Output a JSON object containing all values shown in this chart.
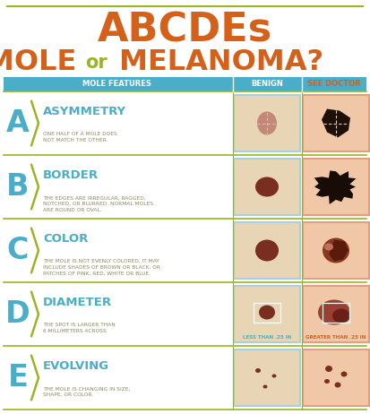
{
  "bg_color": "#ffffff",
  "title_abcdes": "ABCDEs",
  "title_mole": "MOLE ",
  "title_or": "or",
  "title_melanoma": " MELANOMA?",
  "orange": "#d4601a",
  "olive": "#9ab523",
  "blue": "#4aaec9",
  "header_bg": "#4aaec9",
  "header_text": "#ffffff",
  "see_doctor_text": "#d4601a",
  "col1_label": "MOLE FEATURES",
  "col2_label": "BENIGN",
  "col3_label": "SEE DOCTOR",
  "benign_bg": "#e8d5b5",
  "benign_border": "#a8cfe0",
  "doctor_bg": "#f0c8a8",
  "doctor_border": "#e0a080",
  "letter_color": "#4aaec9",
  "feature_title_color": "#4aaec9",
  "desc_color": "#8a8a60",
  "rows": [
    {
      "letter": "A",
      "title": "ASYMMETRY",
      "desc": "ONE HALF OF A MOLE DOES\nNOT MATCH THE OTHER."
    },
    {
      "letter": "B",
      "title": "BORDER",
      "desc": "THE EDGES ARE IRREGULAR, RAGGED,\nNOTCHED, OR BLURRED. NORMAL MOLES\nARE ROUND OR OVAL."
    },
    {
      "letter": "C",
      "title": "COLOR",
      "desc": "THE MOLE IS NOT EVENLY COLORED. IT MAY\nINCLUDE SHADES OF BROWN OR BLACK, OR\nPATCHES OF PINK, RED, WHITE OR BLUE."
    },
    {
      "letter": "D",
      "title": "DIAMETER",
      "desc": "THE SPOT IS LARGER THAN\n6 MILLIMETERS ACROSS",
      "extra_b": "LESS THAN .25 IN",
      "extra_d": "GREATER THAN .25 IN"
    },
    {
      "letter": "E",
      "title": "EVOLVING",
      "desc": "THE MOLE IS CHANGING IN SIZE,\nSHAPE, OR COLOR."
    }
  ]
}
